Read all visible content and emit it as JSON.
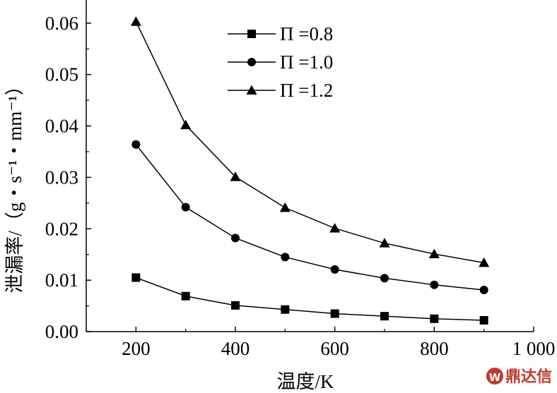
{
  "chart_data": {
    "type": "line",
    "xlabel": "温度/K",
    "ylabel": "泄漏率/（g・s⁻¹・mm⁻¹）",
    "x_ticks": [
      200,
      400,
      600,
      800,
      1000
    ],
    "x_tick_labels": [
      "200",
      "400",
      "600",
      "800",
      "1 000"
    ],
    "y_ticks": [
      0.0,
      0.01,
      0.02,
      0.03,
      0.04,
      0.05,
      0.06
    ],
    "y_tick_labels": [
      "0.00",
      "0.01",
      "0.02",
      "0.03",
      "0.04",
      "0.05",
      "0.06"
    ],
    "xlim": [
      100,
      1000
    ],
    "ylim": [
      0.0,
      0.0645
    ],
    "x": [
      200,
      300,
      400,
      500,
      600,
      700,
      800,
      900
    ],
    "series": [
      {
        "name": "Π =0.8",
        "marker": "square",
        "values": [
          0.0105,
          0.0069,
          0.0051,
          0.0043,
          0.0035,
          0.003,
          0.0025,
          0.0022
        ]
      },
      {
        "name": "Π =1.0",
        "marker": "circle",
        "values": [
          0.0364,
          0.0242,
          0.0182,
          0.0145,
          0.0121,
          0.0104,
          0.0091,
          0.0081
        ]
      },
      {
        "name": "Π =1.2",
        "marker": "triangle",
        "values": [
          0.0603,
          0.0402,
          0.0301,
          0.0241,
          0.0201,
          0.0172,
          0.0151,
          0.0134
        ]
      }
    ],
    "legend_position": "top-right",
    "grid": false
  },
  "watermark": {
    "text": "鼎达信",
    "logo_text": "W"
  }
}
